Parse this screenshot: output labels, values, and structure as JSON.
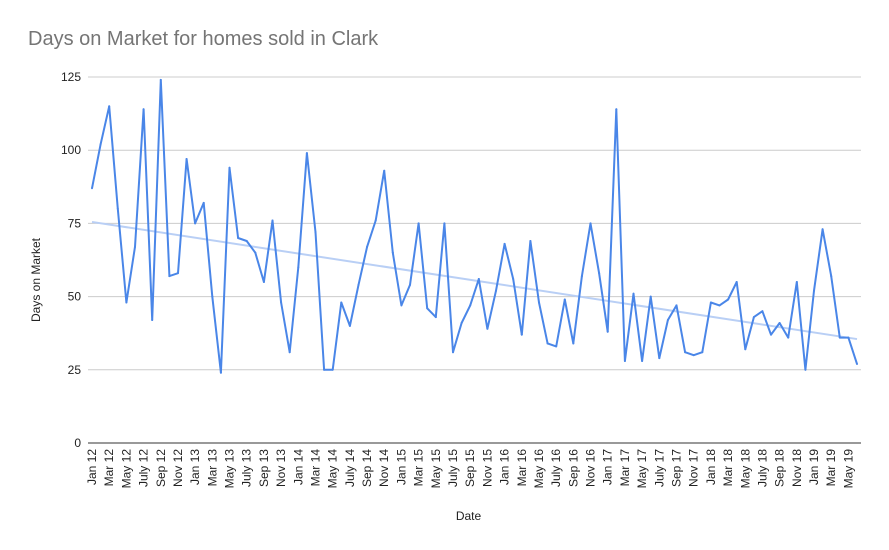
{
  "chart_data": {
    "type": "line",
    "title": "Days on Market for homes sold in Clark",
    "xlabel": "Date",
    "ylabel": "Days on Market",
    "ylim": [
      0,
      125
    ],
    "yticks": [
      0,
      25,
      50,
      75,
      100,
      125
    ],
    "grid": true,
    "legend": "none",
    "colors": {
      "series": "#4a86e8",
      "trendline": "#b9cff5",
      "grid": "#cccccc",
      "baseline": "#333333"
    },
    "x": [
      "Jan 12",
      "Feb 12",
      "Mar 12",
      "Apr 12",
      "May 12",
      "Jun 12",
      "July 12",
      "Aug 12",
      "Sep 12",
      "Oct 12",
      "Nov 12",
      "Dec 12",
      "Jan 13",
      "Feb 13",
      "Mar 13",
      "Apr 13",
      "May 13",
      "Jun 13",
      "July 13",
      "Aug 13",
      "Sep 13",
      "Oct 13",
      "Nov 13",
      "Dec 13",
      "Jan 14",
      "Feb 14",
      "Mar 14",
      "Apr 14",
      "May 14",
      "Jun 14",
      "July 14",
      "Aug 14",
      "Sep 14",
      "Oct 14",
      "Nov 14",
      "Dec 14",
      "Jan 15",
      "Feb 15",
      "Mar 15",
      "Apr 15",
      "May 15",
      "Jun 15",
      "July 15",
      "Aug 15",
      "Sep 15",
      "Oct 15",
      "Nov 15",
      "Dec 15",
      "Jan 16",
      "Feb 16",
      "Mar 16",
      "Apr 16",
      "May 16",
      "Jun 16",
      "July 16",
      "Aug 16",
      "Sep 16",
      "Oct 16",
      "Nov 16",
      "Dec 16",
      "Jan 17",
      "Feb 17",
      "Mar 17",
      "Apr 17",
      "May 17",
      "Jun 17",
      "July 17",
      "Aug 17",
      "Sep 17",
      "Oct 17",
      "Nov 17",
      "Dec 17",
      "Jan 18",
      "Feb 18",
      "Mar 18",
      "Apr 18",
      "May 18",
      "Jun 18",
      "July 18",
      "Aug 18",
      "Sep 18",
      "Oct 18",
      "Nov 18",
      "Dec 18",
      "Jan 19",
      "Feb 19",
      "Mar 19",
      "Apr 19",
      "May 19",
      "Jun 19"
    ],
    "xtick_labels": [
      "Jan 12",
      "Mar 12",
      "May 12",
      "July 12",
      "Sep 12",
      "Nov 12",
      "Jan 13",
      "Mar 13",
      "May 13",
      "July 13",
      "Sep 13",
      "Nov 13",
      "Jan 14",
      "Mar 14",
      "May 14",
      "July 14",
      "Sep 14",
      "Nov 14",
      "Jan 15",
      "Mar 15",
      "May 15",
      "July 15",
      "Sep 15",
      "Nov 15",
      "Jan 16",
      "Mar 16",
      "May 16",
      "July 16",
      "Sep 16",
      "Nov 16",
      "Jan 17",
      "Mar 17",
      "May 17",
      "July 17",
      "Sep 17",
      "Nov 17",
      "Jan 18",
      "Mar 18",
      "May 18",
      "July 18",
      "Sep 18",
      "Nov 18",
      "Jan 19",
      "Mar 19",
      "May 19"
    ],
    "series": [
      {
        "values": [
          87,
          102,
          115,
          80,
          48,
          67,
          114,
          42,
          124,
          57,
          58,
          97,
          75,
          82,
          50,
          24,
          94,
          70,
          69,
          65,
          55,
          76,
          48,
          31,
          60,
          99,
          72,
          25,
          25,
          48,
          40,
          54,
          67,
          76,
          93,
          65,
          47,
          54,
          75,
          46,
          43,
          75,
          31,
          41,
          47,
          56,
          39,
          52,
          68,
          56,
          37,
          69,
          48,
          34,
          33,
          49,
          34,
          57,
          75,
          58,
          38,
          114,
          28,
          51,
          28,
          50,
          29,
          42,
          47,
          31,
          30,
          31,
          48,
          47,
          49,
          55,
          32,
          43,
          45,
          37,
          41,
          36,
          55,
          25,
          52,
          73,
          57,
          36,
          36,
          27
        ]
      }
    ],
    "trendline": {
      "start": 75.5,
      "end": 35.5
    }
  }
}
